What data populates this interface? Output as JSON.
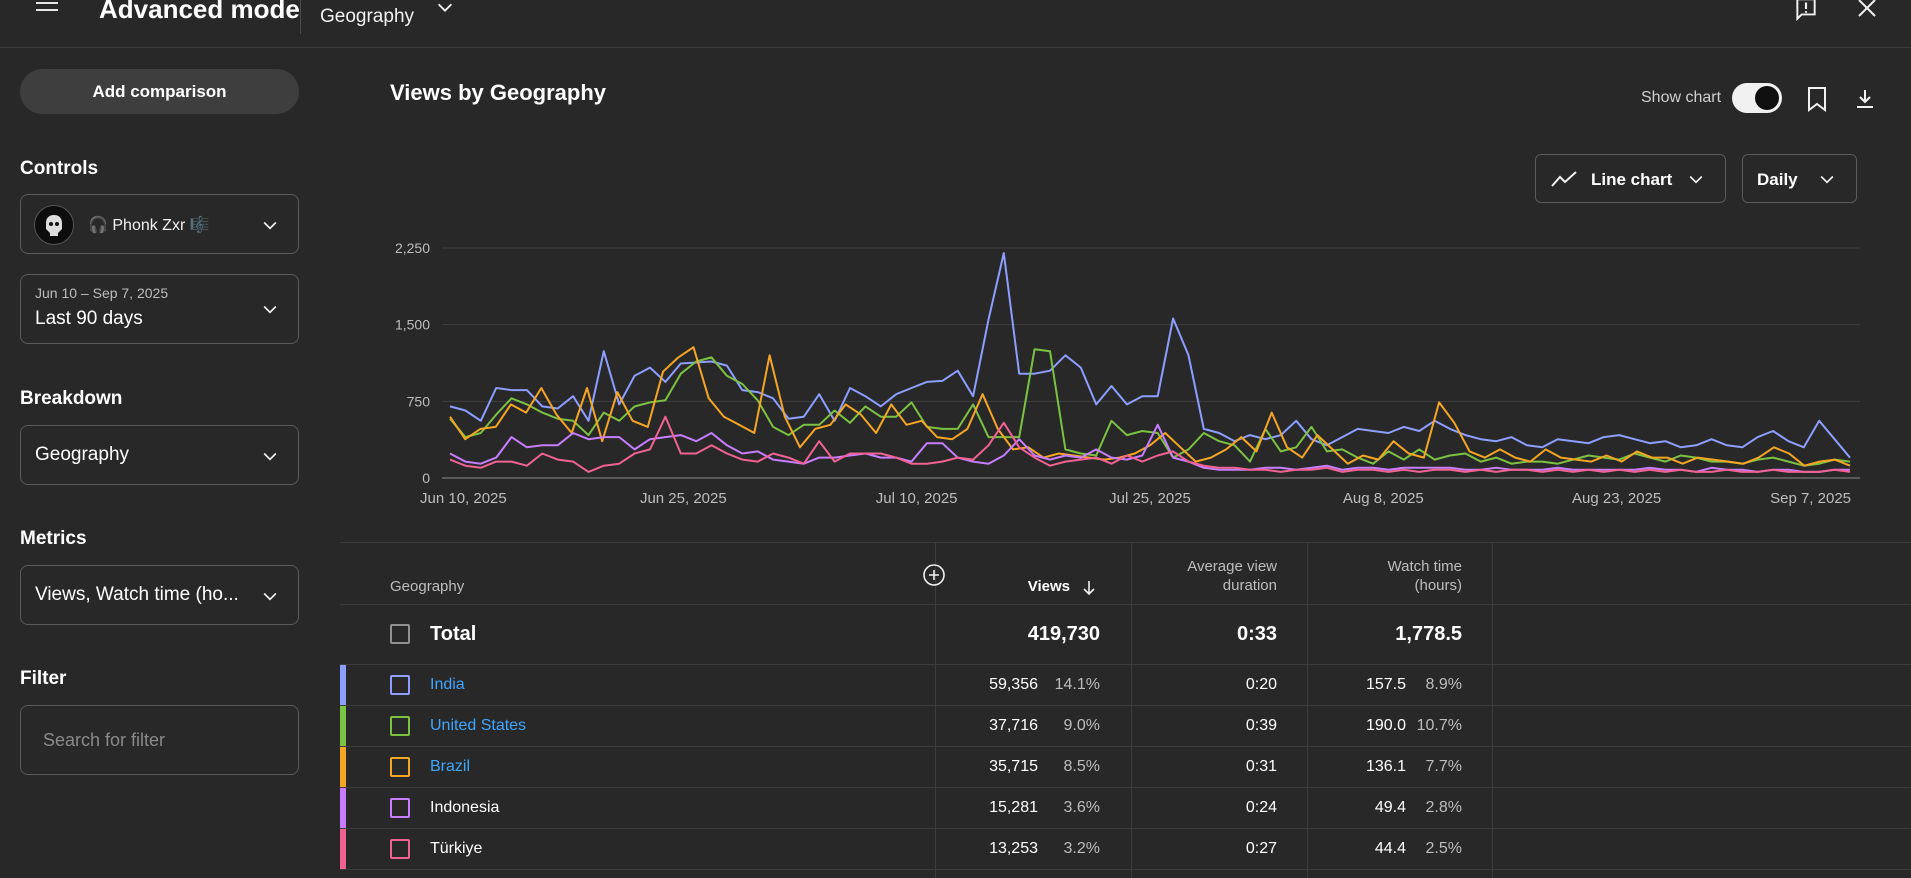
{
  "header": {
    "app_title": "Advanced mode",
    "mode_select": "Geography"
  },
  "sidebar": {
    "add_comparison": "Add comparison",
    "controls_label": "Controls",
    "channel_name": "🎧 Phonk Zxr 🎼",
    "date_range": "Jun 10 – Sep 7, 2025",
    "date_preset": "Last 90 days",
    "breakdown_label": "Breakdown",
    "breakdown_value": "Geography",
    "metrics_label": "Metrics",
    "metrics_value": "Views, Watch time (ho...",
    "filter_label": "Filter",
    "filter_placeholder": "Search for filter"
  },
  "chart_header": {
    "title": "Views by Geography",
    "show_chart_label": "Show chart",
    "show_chart_on": true,
    "chart_type": "Line chart",
    "interval": "Daily"
  },
  "chart_data": {
    "type": "line",
    "ylim": [
      0,
      2250
    ],
    "y_ticks": [
      "2,250",
      "1,500",
      "750",
      "0"
    ],
    "x_tick_labels": [
      "Jun 10, 2025",
      "Jun 25, 2025",
      "Jul 10, 2025",
      "Jul 25, 2025",
      "Aug 8, 2025",
      "Aug 23, 2025",
      "Sep 7, 2025"
    ],
    "grid": true,
    "series": [
      {
        "color": "#8c9eff",
        "values": [
          700,
          660,
          560,
          880,
          860,
          860,
          700,
          680,
          800,
          560,
          1240,
          720,
          1000,
          1080,
          940,
          1120,
          1130,
          1140,
          1100,
          860,
          840,
          780,
          580,
          600,
          820,
          560,
          880,
          800,
          700,
          820,
          880,
          940,
          950,
          1050,
          800,
          1550,
          2200,
          1020,
          1020,
          1050,
          1200,
          1080,
          720,
          900,
          720,
          800,
          800,
          1560,
          1200,
          480,
          440,
          360,
          420,
          380,
          420,
          560,
          380,
          320,
          400,
          480,
          460,
          440,
          500,
          460,
          560,
          480,
          420,
          380,
          360,
          400,
          320,
          300,
          380,
          360,
          340,
          400,
          420,
          380,
          340,
          360,
          300,
          320,
          380,
          320,
          300,
          400,
          460,
          360,
          300,
          560,
          380,
          200
        ]
      },
      {
        "color": "#7cc242",
        "values": [
          580,
          400,
          440,
          620,
          780,
          720,
          640,
          580,
          560,
          420,
          640,
          560,
          700,
          740,
          760,
          1020,
          1140,
          1180,
          1000,
          920,
          760,
          500,
          420,
          520,
          520,
          660,
          540,
          700,
          600,
          600,
          740,
          500,
          480,
          480,
          720,
          400,
          400,
          400,
          1260,
          1240,
          280,
          240,
          220,
          560,
          420,
          460,
          440,
          200,
          280,
          440,
          360,
          320,
          160,
          480,
          260,
          300,
          500,
          260,
          280,
          200,
          140,
          260,
          180,
          280,
          180,
          220,
          240,
          160,
          200,
          140,
          160,
          160,
          140,
          180,
          220,
          200,
          180,
          240,
          200,
          160,
          220,
          200,
          160,
          160,
          140,
          180,
          200,
          160,
          120,
          140,
          180,
          160
        ]
      },
      {
        "color": "#f5a524",
        "values": [
          600,
          380,
          480,
          500,
          720,
          640,
          880,
          620,
          440,
          880,
          360,
          840,
          560,
          500,
          1040,
          1180,
          1280,
          780,
          600,
          520,
          440,
          1200,
          600,
          300,
          480,
          520,
          720,
          620,
          440,
          720,
          520,
          560,
          400,
          380,
          480,
          820,
          480,
          280,
          300,
          200,
          240,
          220,
          200,
          180,
          200,
          240,
          320,
          440,
          300,
          160,
          200,
          280,
          400,
          260,
          640,
          300,
          200,
          420,
          280,
          140,
          220,
          180,
          360,
          240,
          200,
          740,
          540,
          260,
          200,
          280,
          200,
          160,
          280,
          200,
          180,
          160,
          220,
          160,
          260,
          200,
          200,
          140,
          200,
          180,
          160,
          140,
          200,
          300,
          240,
          120,
          160,
          180,
          120
        ]
      },
      {
        "color": "#c77dff",
        "values": [
          240,
          160,
          140,
          200,
          400,
          300,
          320,
          320,
          440,
          380,
          400,
          400,
          280,
          380,
          400,
          420,
          360,
          440,
          320,
          240,
          260,
          180,
          160,
          140,
          200,
          200,
          220,
          240,
          200,
          200,
          160,
          340,
          340,
          200,
          160,
          140,
          220,
          380,
          220,
          180,
          220,
          200,
          280,
          200,
          180,
          220,
          520,
          200,
          160,
          100,
          80,
          80,
          80,
          100,
          100,
          80,
          100,
          120,
          80,
          100,
          100,
          80,
          100,
          100,
          100,
          100,
          80,
          80,
          100,
          80,
          80,
          80,
          100,
          80,
          80,
          80,
          80,
          80,
          100,
          80,
          80,
          60,
          100,
          80,
          80,
          60,
          80,
          80,
          60,
          60,
          80,
          80
        ]
      },
      {
        "color": "#f06292",
        "values": [
          180,
          120,
          100,
          160,
          160,
          120,
          240,
          180,
          160,
          60,
          120,
          140,
          240,
          280,
          600,
          240,
          240,
          320,
          240,
          180,
          160,
          240,
          200,
          140,
          360,
          160,
          240,
          240,
          240,
          200,
          140,
          140,
          160,
          200,
          180,
          320,
          540,
          300,
          200,
          120,
          160,
          180,
          200,
          140,
          220,
          160,
          220,
          260,
          160,
          120,
          100,
          100,
          80,
          80,
          60,
          80,
          80,
          100,
          60,
          80,
          80,
          60,
          80,
          60,
          80,
          80,
          60,
          80,
          60,
          80,
          80,
          60,
          80,
          60,
          80,
          60,
          80,
          60,
          80,
          60,
          80,
          60,
          60,
          80,
          60,
          60,
          80,
          60,
          60,
          60,
          80,
          60
        ]
      }
    ]
  },
  "table": {
    "col_geography": "Geography",
    "col_views": "Views",
    "col_avd": [
      "Average view",
      "duration"
    ],
    "col_watch": [
      "Watch time",
      "(hours)"
    ],
    "total": {
      "label": "Total",
      "views": "419,730",
      "avd": "0:33",
      "watch": "1,778.5"
    },
    "rows": [
      {
        "name": "India",
        "link": true,
        "color": "#8c9eff",
        "views": "59,356",
        "views_pct": "14.1%",
        "avd": "0:20",
        "watch": "157.5",
        "watch_pct": "8.9%"
      },
      {
        "name": "United States",
        "link": true,
        "color": "#7cc242",
        "views": "37,716",
        "views_pct": "9.0%",
        "avd": "0:39",
        "watch": "190.0",
        "watch_pct": "10.7%"
      },
      {
        "name": "Brazil",
        "link": true,
        "color": "#f5a524",
        "views": "35,715",
        "views_pct": "8.5%",
        "avd": "0:31",
        "watch": "136.1",
        "watch_pct": "7.7%"
      },
      {
        "name": "Indonesia",
        "link": false,
        "color": "#c77dff",
        "views": "15,281",
        "views_pct": "3.6%",
        "avd": "0:24",
        "watch": "49.4",
        "watch_pct": "2.8%"
      },
      {
        "name": "Türkiye",
        "link": false,
        "color": "#f06292",
        "views": "13,253",
        "views_pct": "3.2%",
        "avd": "0:27",
        "watch": "44.4",
        "watch_pct": "2.5%"
      }
    ]
  }
}
